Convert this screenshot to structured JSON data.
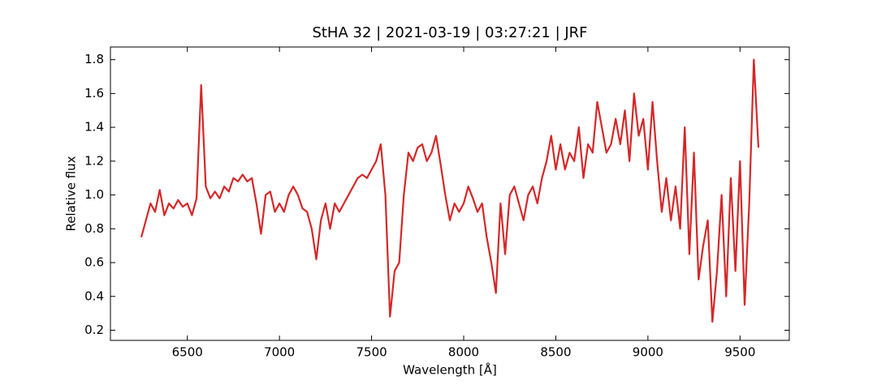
{
  "chart_data": {
    "type": "line",
    "title": "StHA 32 | 2021-03-19 | 03:27:21 | JRF",
    "x_label": "Wavelength [Å]",
    "y_label": "Relative flux",
    "x": [
      6250,
      6275,
      6300,
      6325,
      6350,
      6375,
      6400,
      6425,
      6450,
      6475,
      6500,
      6525,
      6550,
      6575,
      6600,
      6625,
      6650,
      6675,
      6700,
      6725,
      6750,
      6775,
      6800,
      6825,
      6850,
      6875,
      6900,
      6925,
      6950,
      6975,
      7000,
      7025,
      7050,
      7075,
      7100,
      7125,
      7150,
      7175,
      7200,
      7225,
      7250,
      7275,
      7300,
      7325,
      7350,
      7375,
      7400,
      7425,
      7450,
      7475,
      7500,
      7525,
      7550,
      7575,
      7600,
      7625,
      7650,
      7675,
      7700,
      7725,
      7750,
      7775,
      7800,
      7825,
      7850,
      7875,
      7900,
      7925,
      7950,
      7975,
      8000,
      8025,
      8050,
      8075,
      8100,
      8125,
      8150,
      8175,
      8200,
      8225,
      8250,
      8275,
      8300,
      8325,
      8350,
      8375,
      8400,
      8425,
      8450,
      8475,
      8500,
      8525,
      8550,
      8575,
      8600,
      8625,
      8650,
      8675,
      8700,
      8725,
      8750,
      8775,
      8800,
      8825,
      8850,
      8875,
      8900,
      8925,
      8950,
      8975,
      9000,
      9025,
      9050,
      9075,
      9100,
      9125,
      9150,
      9175,
      9200,
      9225,
      9250,
      9275,
      9300,
      9325,
      9350,
      9375,
      9400,
      9425,
      9450,
      9475,
      9500,
      9525,
      9550,
      9575,
      9600
    ],
    "series": [
      {
        "name": "flux",
        "color": "#d62728",
        "values": [
          0.75,
          0.85,
          0.95,
          0.9,
          1.03,
          0.88,
          0.95,
          0.92,
          0.97,
          0.93,
          0.95,
          0.88,
          0.98,
          1.65,
          1.05,
          0.98,
          1.02,
          0.98,
          1.05,
          1.02,
          1.1,
          1.08,
          1.12,
          1.08,
          1.1,
          0.95,
          0.77,
          1.0,
          1.02,
          0.9,
          0.95,
          0.9,
          1.0,
          1.05,
          1.0,
          0.92,
          0.9,
          0.8,
          0.62,
          0.85,
          0.95,
          0.8,
          0.95,
          0.9,
          0.95,
          1.0,
          1.05,
          1.1,
          1.12,
          1.1,
          1.15,
          1.2,
          1.3,
          1.0,
          0.28,
          0.55,
          0.6,
          1.0,
          1.25,
          1.2,
          1.28,
          1.3,
          1.2,
          1.25,
          1.35,
          1.18,
          1.0,
          0.85,
          0.95,
          0.9,
          0.95,
          1.05,
          0.98,
          0.9,
          0.95,
          0.75,
          0.6,
          0.42,
          0.95,
          0.65,
          1.0,
          1.05,
          0.95,
          0.85,
          1.0,
          1.05,
          0.95,
          1.1,
          1.2,
          1.35,
          1.15,
          1.3,
          1.15,
          1.25,
          1.2,
          1.4,
          1.1,
          1.3,
          1.25,
          1.55,
          1.4,
          1.25,
          1.3,
          1.45,
          1.3,
          1.5,
          1.2,
          1.6,
          1.35,
          1.45,
          1.15,
          1.55,
          1.2,
          0.9,
          1.1,
          0.85,
          1.05,
          0.8,
          1.4,
          0.65,
          1.25,
          0.5,
          0.7,
          0.85,
          0.25,
          0.55,
          1.0,
          0.4,
          1.1,
          0.55,
          1.2,
          0.35,
          0.95,
          1.8,
          1.28
        ]
      }
    ],
    "xlim": [
      6082.5,
      9767.5
    ],
    "xticks": [
      6500,
      7000,
      7500,
      8000,
      8500,
      9000,
      9500
    ],
    "ylim": [
      0.14,
      1.875
    ],
    "yticks": [
      0.2,
      0.4,
      0.6,
      0.8,
      {
        "value": 1,
        "label": "1.0"
      },
      1.2,
      1.4,
      1.6,
      1.8
    ]
  }
}
